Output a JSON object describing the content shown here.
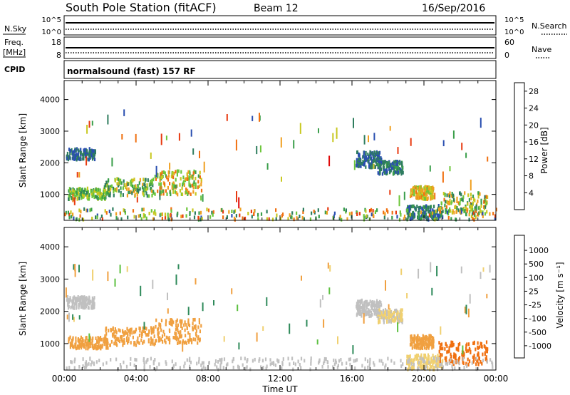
{
  "header": {
    "title": "South Pole Station (fitACF)",
    "beam": "Beam 12",
    "date": "16/Sep/2016"
  },
  "strips": {
    "nsky": {
      "left_label": "N.Sky",
      "left_ticks": [
        "10^5",
        "10^0"
      ],
      "right_ticks": [
        "10^5",
        "10^0"
      ],
      "right_label": "N.Search"
    },
    "freq": {
      "left_label_1": "Freq.",
      "left_label_2": "[MHz]",
      "left_ticks": [
        "18",
        "8"
      ],
      "right_ticks": [
        "60",
        "0"
      ],
      "right_label": "Nave"
    },
    "cpid": {
      "left_label": "CPID",
      "program": "normalsound (fast) 157 RF"
    }
  },
  "chart_data": [
    {
      "type": "heatmap",
      "name": "power",
      "xlabel": "",
      "ylabel": "Slant Range [km]",
      "xlim": [
        0,
        24
      ],
      "ylim": [
        180,
        4600
      ],
      "yticks": [
        1000,
        2000,
        3000,
        4000
      ],
      "colorbar": {
        "label": "Power [dB]",
        "range": [
          0,
          30
        ],
        "ticks": [
          "4",
          "8",
          "12",
          "16",
          "20",
          "24",
          "28"
        ],
        "tick_values": [
          4,
          8,
          12,
          16,
          20,
          24,
          28
        ],
        "colors": [
          "#1f2ee0",
          "#2a4fb0",
          "#2e7d5e",
          "#3a9e4a",
          "#6cc63a",
          "#c8c820",
          "#f0a020",
          "#f07010",
          "#e83a10",
          "#e00808"
        ]
      },
      "clusters": [
        {
          "t": [
            0.1,
            1.7
          ],
          "r": [
            2150,
            2500
          ],
          "v": [
            4,
            8
          ]
        },
        {
          "t": [
            0.2,
            2.4
          ],
          "r": [
            900,
            1250
          ],
          "v": [
            8,
            18
          ]
        },
        {
          "t": [
            2.2,
            5.0
          ],
          "r": [
            1000,
            1550
          ],
          "v": [
            6,
            20
          ]
        },
        {
          "t": [
            5.0,
            7.6
          ],
          "r": [
            1050,
            1800
          ],
          "v": [
            10,
            24
          ]
        },
        {
          "t": [
            16.2,
            17.6
          ],
          "r": [
            1900,
            2400
          ],
          "v": [
            4,
            8
          ]
        },
        {
          "t": [
            17.4,
            18.8
          ],
          "r": [
            1700,
            2100
          ],
          "v": [
            4,
            10
          ]
        },
        {
          "t": [
            19.2,
            20.5
          ],
          "r": [
            900,
            1300
          ],
          "v": [
            14,
            22
          ]
        },
        {
          "t": [
            19.0,
            21.0
          ],
          "r": [
            250,
            700
          ],
          "v": [
            4,
            10
          ]
        },
        {
          "t": [
            20.8,
            23.5
          ],
          "r": [
            400,
            1100
          ],
          "v": [
            6,
            22
          ]
        },
        {
          "t": [
            0.0,
            24.0
          ],
          "r": [
            250,
            600
          ],
          "v": [
            4,
            26
          ]
        }
      ]
    },
    {
      "type": "heatmap",
      "name": "velocity",
      "xlabel": "Time UT",
      "ylabel": "Slant Range [km]",
      "xlim": [
        0,
        24
      ],
      "xticks": [
        "00:00",
        "04:00",
        "08:00",
        "12:00",
        "16:00",
        "20:00",
        "00:00"
      ],
      "ylim": [
        180,
        4600
      ],
      "yticks": [
        1000,
        2000,
        3000,
        4000
      ],
      "colorbar": {
        "label": "Velocity [m s⁻¹]",
        "ticks": [
          "1000",
          "500",
          "100",
          "25",
          "-25",
          "-100",
          "-500",
          "-1000"
        ],
        "colors": [
          "#2040d0",
          "#2a6fb0",
          "#2e8a5a",
          "#5cc040",
          "#c0c0c0",
          "#f0d070",
          "#f0a040",
          "#f07010",
          "#e83a10",
          "#e00808"
        ]
      },
      "clusters": [
        {
          "t": [
            0.1,
            1.7
          ],
          "r": [
            2150,
            2500
          ],
          "v": [
            -25,
            25
          ]
        },
        {
          "t": [
            0.2,
            2.4
          ],
          "r": [
            900,
            1250
          ],
          "v": [
            -500,
            -100
          ]
        },
        {
          "t": [
            2.2,
            5.0
          ],
          "r": [
            1000,
            1550
          ],
          "v": [
            -500,
            -100
          ]
        },
        {
          "t": [
            5.0,
            7.6
          ],
          "r": [
            1050,
            1800
          ],
          "v": [
            -500,
            -100
          ]
        },
        {
          "t": [
            16.2,
            17.6
          ],
          "r": [
            1900,
            2400
          ],
          "v": [
            -25,
            25
          ]
        },
        {
          "t": [
            17.4,
            18.8
          ],
          "r": [
            1700,
            2100
          ],
          "v": [
            -100,
            25
          ]
        },
        {
          "t": [
            19.2,
            20.5
          ],
          "r": [
            900,
            1300
          ],
          "v": [
            -500,
            -100
          ]
        },
        {
          "t": [
            19.0,
            21.0
          ],
          "r": [
            250,
            700
          ],
          "v": [
            -100,
            -25
          ]
        },
        {
          "t": [
            20.8,
            23.5
          ],
          "r": [
            400,
            1100
          ],
          "v": [
            -1000,
            -500
          ]
        },
        {
          "t": [
            0.0,
            24.0
          ],
          "r": [
            250,
            600
          ],
          "v": [
            -25,
            25
          ]
        }
      ]
    }
  ]
}
